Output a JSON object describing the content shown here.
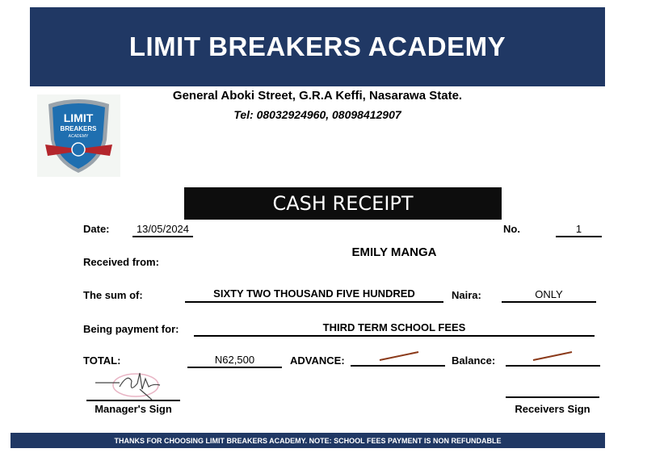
{
  "header": {
    "title": "LIMIT BREAKERS ACADEMY",
    "address": "General Aboki Street, G.R.A Keffi, Nasarawa State.",
    "tel": "Tel: 08032924960, 08098412907"
  },
  "logo": {
    "text": "LIMIT BREAKERS ACADEMY",
    "icon": "shield-logo"
  },
  "receipt": {
    "title": "CASH RECEIPT",
    "date_label": "Date:",
    "date": "13/05/2024",
    "no_label": "No.",
    "no": "1",
    "received_from_label": "Received from:",
    "received_from": "EMILY MANGA",
    "sum_label": "The sum of:",
    "sum": "SIXTY TWO THOUSAND FIVE HUNDRED",
    "naira_label": "Naira:",
    "naira": "ONLY",
    "payment_for_label": "Being payment for:",
    "payment_for": "THIRD TERM SCHOOL FEES",
    "total_label": "TOTAL:",
    "total": "N62,500",
    "advance_label": "ADVANCE:",
    "balance_label": "Balance:",
    "manager_sign": "Manager's Sign",
    "receivers_sign": "Receivers Sign",
    "dash_color": "#8b3a1a"
  },
  "footer": {
    "text": "THANKS FOR CHOOSING LIMIT BREAKERS ACADEMY. NOTE: SCHOOL FEES PAYMENT IS NON REFUNDABLE"
  }
}
